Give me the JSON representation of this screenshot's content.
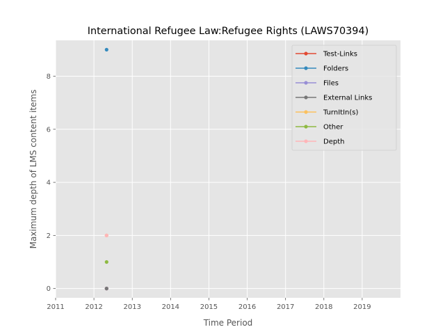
{
  "chart_data": {
    "type": "line",
    "title": "International Refugee Law:Refugee Rights (LAWS70394)",
    "xlabel": "Time Period",
    "ylabel": "Maximum depth of LMS content items",
    "xlim": [
      2011.0,
      2020.0
    ],
    "ylim": [
      -0.35,
      9.35
    ],
    "xticks": [
      "2011",
      "2012",
      "2013",
      "2014",
      "2015",
      "2016",
      "2017",
      "2018",
      "2019"
    ],
    "yticks": [
      "0",
      "2",
      "4",
      "6",
      "8"
    ],
    "grid": true,
    "legend_position": "top-right",
    "series": [
      {
        "name": "Test-Links",
        "color": "#E24A33",
        "points": [
          {
            "x": 2012.33,
            "y": 0
          }
        ]
      },
      {
        "name": "Folders",
        "color": "#348ABD",
        "points": [
          {
            "x": 2012.33,
            "y": 9
          }
        ]
      },
      {
        "name": "Files",
        "color": "#988ED5",
        "points": [
          {
            "x": 2012.33,
            "y": 0
          }
        ]
      },
      {
        "name": "External Links",
        "color": "#777777",
        "points": [
          {
            "x": 2012.33,
            "y": 0
          }
        ]
      },
      {
        "name": "TurnItIn(s)",
        "color": "#FBC15E",
        "points": [
          {
            "x": 2012.33,
            "y": 2
          }
        ]
      },
      {
        "name": "Other",
        "color": "#8EBA42",
        "points": [
          {
            "x": 2012.33,
            "y": 1
          }
        ]
      },
      {
        "name": "Depth",
        "color": "#FFB5B8",
        "points": [
          {
            "x": 2012.33,
            "y": 2
          }
        ]
      }
    ]
  }
}
